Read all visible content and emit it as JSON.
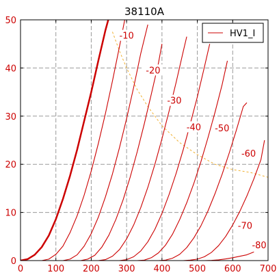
{
  "chart_data": {
    "type": "line",
    "title": "38110A",
    "xlim": [
      0,
      700
    ],
    "ylim": [
      0,
      50
    ],
    "x_ticks": [
      0,
      100,
      200,
      300,
      400,
      500,
      600,
      700
    ],
    "y_ticks": [
      0,
      10,
      20,
      30,
      40,
      50
    ],
    "grid": true,
    "legend": {
      "position": "top-right",
      "entries": [
        "HV1_I"
      ]
    },
    "colors": {
      "curve": "#cc0000",
      "dissipation": "#f0b030",
      "grid": "#999999"
    },
    "series": [
      {
        "name": "HV1_I",
        "label": "",
        "emphasis": true,
        "points": [
          [
            0,
            0
          ],
          [
            20,
            0.3
          ],
          [
            40,
            1.2
          ],
          [
            60,
            2.8
          ],
          [
            80,
            5.2
          ],
          [
            100,
            8.6
          ],
          [
            120,
            12.8
          ],
          [
            140,
            17.6
          ],
          [
            160,
            23.0
          ],
          [
            180,
            29.0
          ],
          [
            200,
            35.0
          ],
          [
            220,
            41.5
          ],
          [
            240,
            47.8
          ],
          [
            250,
            50.5
          ]
        ]
      },
      {
        "label": "-10",
        "points": [
          [
            60,
            0
          ],
          [
            80,
            0.3
          ],
          [
            100,
            1.3
          ],
          [
            120,
            3.0
          ],
          [
            140,
            5.8
          ],
          [
            160,
            9.3
          ],
          [
            180,
            13.6
          ],
          [
            200,
            18.6
          ],
          [
            220,
            24.3
          ],
          [
            240,
            30.5
          ],
          [
            260,
            37.3
          ],
          [
            280,
            44.5
          ],
          [
            300,
            52.0
          ]
        ]
      },
      {
        "label": "-20",
        "points": [
          [
            120,
            0
          ],
          [
            140,
            0.3
          ],
          [
            160,
            1.2
          ],
          [
            180,
            3.0
          ],
          [
            200,
            5.6
          ],
          [
            220,
            9.0
          ],
          [
            240,
            13.2
          ],
          [
            260,
            18.0
          ],
          [
            280,
            23.5
          ],
          [
            300,
            29.5
          ],
          [
            320,
            36.0
          ],
          [
            340,
            43.0
          ],
          [
            360,
            49.0
          ]
        ]
      },
      {
        "label": "-30",
        "points": [
          [
            170,
            0
          ],
          [
            190,
            0.3
          ],
          [
            210,
            1.1
          ],
          [
            230,
            2.8
          ],
          [
            250,
            5.3
          ],
          [
            270,
            8.6
          ],
          [
            290,
            12.6
          ],
          [
            310,
            17.3
          ],
          [
            330,
            22.6
          ],
          [
            350,
            28.4
          ],
          [
            370,
            34.6
          ],
          [
            390,
            41.0
          ],
          [
            400,
            45.0
          ]
        ]
      },
      {
        "label": "-40",
        "points": [
          [
            220,
            0
          ],
          [
            240,
            0.2
          ],
          [
            260,
            0.9
          ],
          [
            280,
            2.3
          ],
          [
            300,
            4.5
          ],
          [
            320,
            7.4
          ],
          [
            340,
            11.0
          ],
          [
            360,
            15.2
          ],
          [
            380,
            20.0
          ],
          [
            400,
            25.3
          ],
          [
            420,
            31.0
          ],
          [
            440,
            37.0
          ],
          [
            460,
            43.4
          ],
          [
            470,
            46.5
          ]
        ]
      },
      {
        "label": "-50",
        "points": [
          [
            280,
            0
          ],
          [
            300,
            0.2
          ],
          [
            320,
            0.8
          ],
          [
            340,
            2.0
          ],
          [
            360,
            3.9
          ],
          [
            380,
            6.5
          ],
          [
            400,
            9.8
          ],
          [
            420,
            13.7
          ],
          [
            440,
            18.1
          ],
          [
            460,
            23.0
          ],
          [
            480,
            28.4
          ],
          [
            500,
            34.0
          ],
          [
            520,
            40.2
          ],
          [
            535,
            45.0
          ]
        ]
      },
      {
        "label": "-60",
        "points": [
          [
            330,
            0
          ],
          [
            350,
            0.1
          ],
          [
            370,
            0.6
          ],
          [
            390,
            1.6
          ],
          [
            410,
            3.2
          ],
          [
            430,
            5.5
          ],
          [
            450,
            8.5
          ],
          [
            470,
            12.0
          ],
          [
            490,
            16.0
          ],
          [
            510,
            20.5
          ],
          [
            530,
            25.5
          ],
          [
            550,
            30.8
          ],
          [
            570,
            36.5
          ],
          [
            585,
            41.5
          ]
        ]
      },
      {
        "label": "-70",
        "points": [
          [
            390,
            0
          ],
          [
            410,
            0.1
          ],
          [
            430,
            0.5
          ],
          [
            450,
            1.3
          ],
          [
            470,
            2.7
          ],
          [
            490,
            4.7
          ],
          [
            510,
            7.2
          ],
          [
            530,
            10.3
          ],
          [
            550,
            13.9
          ],
          [
            570,
            17.9
          ],
          [
            590,
            22.3
          ],
          [
            610,
            27.0
          ],
          [
            630,
            32.0
          ],
          [
            640,
            32.8
          ]
        ]
      },
      {
        "label": "-80",
        "points": [
          [
            460,
            0
          ],
          [
            480,
            0.1
          ],
          [
            500,
            0.3
          ],
          [
            520,
            0.8
          ],
          [
            540,
            1.7
          ],
          [
            560,
            3.1
          ],
          [
            580,
            5.0
          ],
          [
            600,
            7.4
          ],
          [
            620,
            10.2
          ],
          [
            640,
            13.4
          ],
          [
            660,
            17.0
          ],
          [
            680,
            21.0
          ],
          [
            690,
            25.0
          ]
        ]
      },
      {
        "label": "",
        "points": [
          [
            520,
            0
          ],
          [
            540,
            0.05
          ],
          [
            560,
            0.15
          ],
          [
            580,
            0.35
          ],
          [
            600,
            0.6
          ],
          [
            620,
            0.9
          ],
          [
            640,
            1.2
          ],
          [
            660,
            1.8
          ]
        ]
      }
    ],
    "dissipation_curve": [
      [
        260,
        47.5
      ],
      [
        280,
        43.5
      ],
      [
        300,
        40.0
      ],
      [
        330,
        35.5
      ],
      [
        360,
        32.0
      ],
      [
        400,
        28.0
      ],
      [
        450,
        24.5
      ],
      [
        500,
        22.0
      ],
      [
        550,
        20.0
      ],
      [
        600,
        18.9
      ],
      [
        650,
        18.3
      ],
      [
        700,
        17.3
      ]
    ],
    "curve_labels": [
      {
        "text": "-10",
        "x": 300,
        "y": 46.5
      },
      {
        "text": "-20",
        "x": 375,
        "y": 39.3
      },
      {
        "text": "-30",
        "x": 435,
        "y": 33.0
      },
      {
        "text": "-40",
        "x": 490,
        "y": 27.5
      },
      {
        "text": "-50",
        "x": 570,
        "y": 27.3
      },
      {
        "text": "-60",
        "x": 645,
        "y": 22.0
      },
      {
        "text": "-70",
        "x": 635,
        "y": 7.0
      },
      {
        "text": "-80",
        "x": 675,
        "y": 3.0
      }
    ]
  }
}
